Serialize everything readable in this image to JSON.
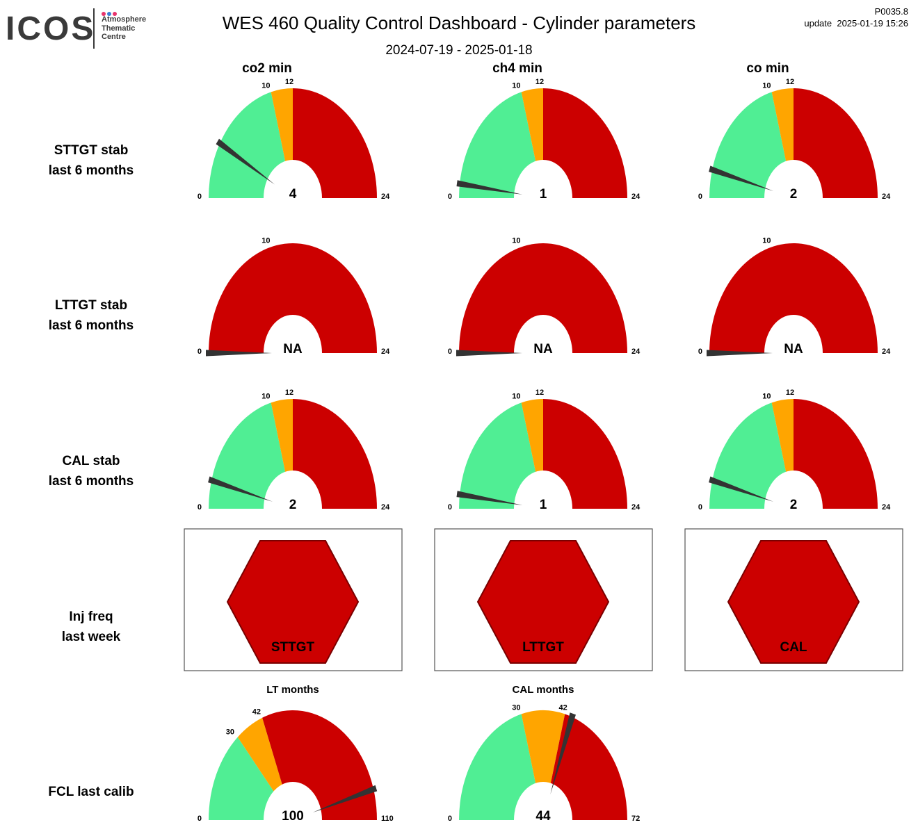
{
  "header": {
    "logo": {
      "wordmark": "ICOS",
      "line1": "Atmosphere",
      "line2": "Thematic",
      "line3": "Centre",
      "dot_colors": [
        "#e8336b",
        "#3b7fd6",
        "#e8336b"
      ]
    },
    "title": "WES 460 Quality Control Dashboard - Cylinder parameters",
    "version": "P0035.8",
    "update": "update  2025-01-19 15:26",
    "period": "2024-07-19 - 2025-01-18"
  },
  "colors": {
    "green": "#50ee94",
    "orange": "#ffa500",
    "red": "#cc0000",
    "needle": "#333333",
    "hex_border": "#7a0000"
  },
  "columns": [
    "co2 min",
    "ch4 min",
    "co min"
  ],
  "rows": [
    {
      "id": "sttgt",
      "line1": "STTGT stab",
      "line2": "last 6 months"
    },
    {
      "id": "lttgt",
      "line1": "LTTGT stab",
      "line2": "last 6 months"
    },
    {
      "id": "cal",
      "line1": "CAL stab",
      "line2": "last 6 months"
    },
    {
      "id": "inj",
      "line1": "Inj freq",
      "line2": "last week"
    },
    {
      "id": "fcl",
      "line1": "FCL last calib",
      "line2": ""
    }
  ],
  "chart_data": [
    {
      "type": "gauge",
      "row": "STTGT stab last 6 months",
      "column": "co2 min",
      "min": 0,
      "max": 24,
      "bands": [
        {
          "from": 0,
          "to": 10,
          "color": "#50ee94"
        },
        {
          "from": 10,
          "to": 12,
          "color": "#ffa500"
        },
        {
          "from": 12,
          "to": 24,
          "color": "#cc0000"
        }
      ],
      "tick_labels": [
        "0",
        "10",
        "12",
        "24"
      ],
      "value": 4,
      "value_label": "4"
    },
    {
      "type": "gauge",
      "row": "STTGT stab last 6 months",
      "column": "ch4 min",
      "min": 0,
      "max": 24,
      "bands": [
        {
          "from": 0,
          "to": 10,
          "color": "#50ee94"
        },
        {
          "from": 10,
          "to": 12,
          "color": "#ffa500"
        },
        {
          "from": 12,
          "to": 24,
          "color": "#cc0000"
        }
      ],
      "tick_labels": [
        "0",
        "10",
        "12",
        "24"
      ],
      "value": 1,
      "value_label": "1"
    },
    {
      "type": "gauge",
      "row": "STTGT stab last 6 months",
      "column": "co min",
      "min": 0,
      "max": 24,
      "bands": [
        {
          "from": 0,
          "to": 10,
          "color": "#50ee94"
        },
        {
          "from": 10,
          "to": 12,
          "color": "#ffa500"
        },
        {
          "from": 12,
          "to": 24,
          "color": "#cc0000"
        }
      ],
      "tick_labels": [
        "0",
        "10",
        "12",
        "24"
      ],
      "value": 2,
      "value_label": "2"
    },
    {
      "type": "gauge",
      "row": "LTTGT stab last 6 months",
      "column": "co2 min",
      "min": 0,
      "max": 24,
      "bands": [
        {
          "from": 0,
          "to": 24,
          "color": "#cc0000"
        }
      ],
      "tick_labels": [
        "0",
        "10",
        "24"
      ],
      "value": 0,
      "value_label": "NA"
    },
    {
      "type": "gauge",
      "row": "LTTGT stab last 6 months",
      "column": "ch4 min",
      "min": 0,
      "max": 24,
      "bands": [
        {
          "from": 0,
          "to": 24,
          "color": "#cc0000"
        }
      ],
      "tick_labels": [
        "0",
        "10",
        "24"
      ],
      "value": 0,
      "value_label": "NA"
    },
    {
      "type": "gauge",
      "row": "LTTGT stab last 6 months",
      "column": "co min",
      "min": 0,
      "max": 24,
      "bands": [
        {
          "from": 0,
          "to": 24,
          "color": "#cc0000"
        }
      ],
      "tick_labels": [
        "0",
        "10",
        "24"
      ],
      "value": 0,
      "value_label": "NA"
    },
    {
      "type": "gauge",
      "row": "CAL stab last 6 months",
      "column": "co2 min",
      "min": 0,
      "max": 24,
      "bands": [
        {
          "from": 0,
          "to": 10,
          "color": "#50ee94"
        },
        {
          "from": 10,
          "to": 12,
          "color": "#ffa500"
        },
        {
          "from": 12,
          "to": 24,
          "color": "#cc0000"
        }
      ],
      "tick_labels": [
        "0",
        "10",
        "12",
        "24"
      ],
      "value": 2,
      "value_label": "2"
    },
    {
      "type": "gauge",
      "row": "CAL stab last 6 months",
      "column": "ch4 min",
      "min": 0,
      "max": 24,
      "bands": [
        {
          "from": 0,
          "to": 10,
          "color": "#50ee94"
        },
        {
          "from": 10,
          "to": 12,
          "color": "#ffa500"
        },
        {
          "from": 12,
          "to": 24,
          "color": "#cc0000"
        }
      ],
      "tick_labels": [
        "0",
        "10",
        "12",
        "24"
      ],
      "value": 1,
      "value_label": "1"
    },
    {
      "type": "gauge",
      "row": "CAL stab last 6 months",
      "column": "co min",
      "min": 0,
      "max": 24,
      "bands": [
        {
          "from": 0,
          "to": 10,
          "color": "#50ee94"
        },
        {
          "from": 10,
          "to": 12,
          "color": "#ffa500"
        },
        {
          "from": 12,
          "to": 24,
          "color": "#cc0000"
        }
      ],
      "tick_labels": [
        "0",
        "10",
        "12",
        "24"
      ],
      "value": 2,
      "value_label": "2"
    },
    {
      "type": "status",
      "row": "Inj freq last week",
      "column": "co2 min",
      "label": "STTGT",
      "color": "#cc0000"
    },
    {
      "type": "status",
      "row": "Inj freq last week",
      "column": "ch4 min",
      "label": "LTTGT",
      "color": "#cc0000"
    },
    {
      "type": "status",
      "row": "Inj freq last week",
      "column": "co min",
      "label": "CAL",
      "color": "#cc0000"
    },
    {
      "type": "gauge",
      "row": "FCL last calib",
      "column": "co2 min",
      "title": "LT months",
      "min": 0,
      "max": 110,
      "bands": [
        {
          "from": 0,
          "to": 30,
          "color": "#50ee94"
        },
        {
          "from": 30,
          "to": 42,
          "color": "#ffa500"
        },
        {
          "from": 42,
          "to": 110,
          "color": "#cc0000"
        }
      ],
      "tick_labels": [
        "0",
        "30",
        "42",
        "110"
      ],
      "value": 100,
      "value_label": "100"
    },
    {
      "type": "gauge",
      "row": "FCL last calib",
      "column": "ch4 min",
      "title": "CAL months",
      "min": 0,
      "max": 72,
      "bands": [
        {
          "from": 0,
          "to": 30,
          "color": "#50ee94"
        },
        {
          "from": 30,
          "to": 42,
          "color": "#ffa500"
        },
        {
          "from": 42,
          "to": 72,
          "color": "#cc0000"
        }
      ],
      "tick_labels": [
        "0",
        "30",
        "42",
        "72"
      ],
      "value": 44,
      "value_label": "44"
    }
  ]
}
